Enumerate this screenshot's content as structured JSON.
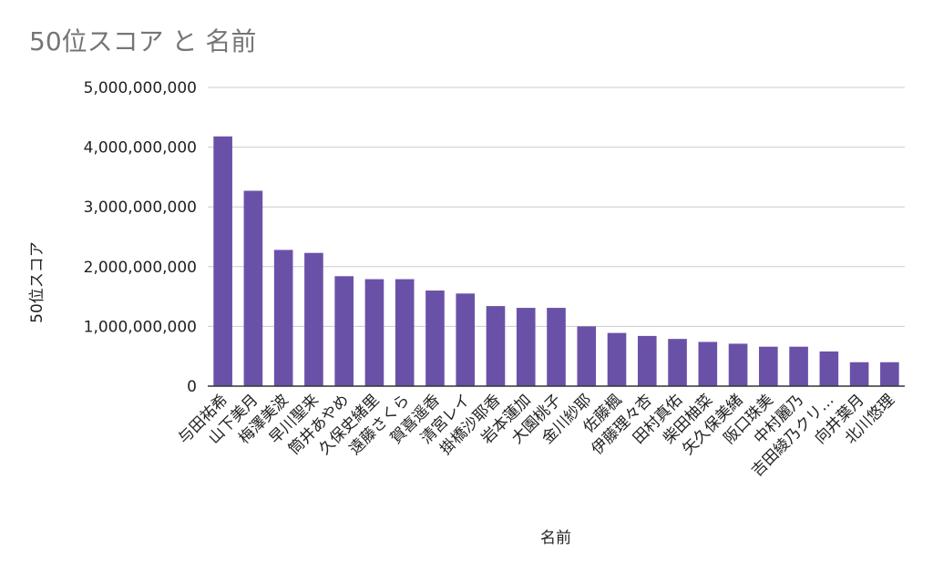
{
  "chart_data": {
    "type": "bar",
    "title": "50位スコア と 名前",
    "xlabel": "名前",
    "ylabel": "50位スコア",
    "ylim": [
      0,
      5000000000
    ],
    "yticks": [
      0,
      1000000000,
      2000000000,
      3000000000,
      4000000000,
      5000000000
    ],
    "ytick_labels": [
      "0",
      "1,000,000,000",
      "2,000,000,000",
      "3,000,000,000",
      "4,000,000,000",
      "5,000,000,000"
    ],
    "grid": true,
    "legend": "none",
    "bar_color": "#6a51a8",
    "categories": [
      "与田祐希",
      "山下美月",
      "梅澤美波",
      "早川聖来",
      "筒井あやめ",
      "久保史緒里",
      "遠藤さくら",
      "賀喜遥香",
      "清宮レイ",
      "掛橋沙耶香",
      "岩本蓮加",
      "大園桃子",
      "金川紗耶",
      "佐藤楓",
      "伊藤理々杏",
      "田村真佑",
      "柴田柚菜",
      "矢久保美緒",
      "阪口珠美",
      "中村麗乃",
      "吉田綾乃クリ…",
      "向井葉月",
      "北川悠理"
    ],
    "values": [
      4180000000,
      3270000000,
      2280000000,
      2230000000,
      1840000000,
      1790000000,
      1790000000,
      1600000000,
      1550000000,
      1340000000,
      1310000000,
      1310000000,
      1000000000,
      890000000,
      840000000,
      790000000,
      740000000,
      710000000,
      660000000,
      660000000,
      580000000,
      400000000,
      400000000
    ]
  }
}
